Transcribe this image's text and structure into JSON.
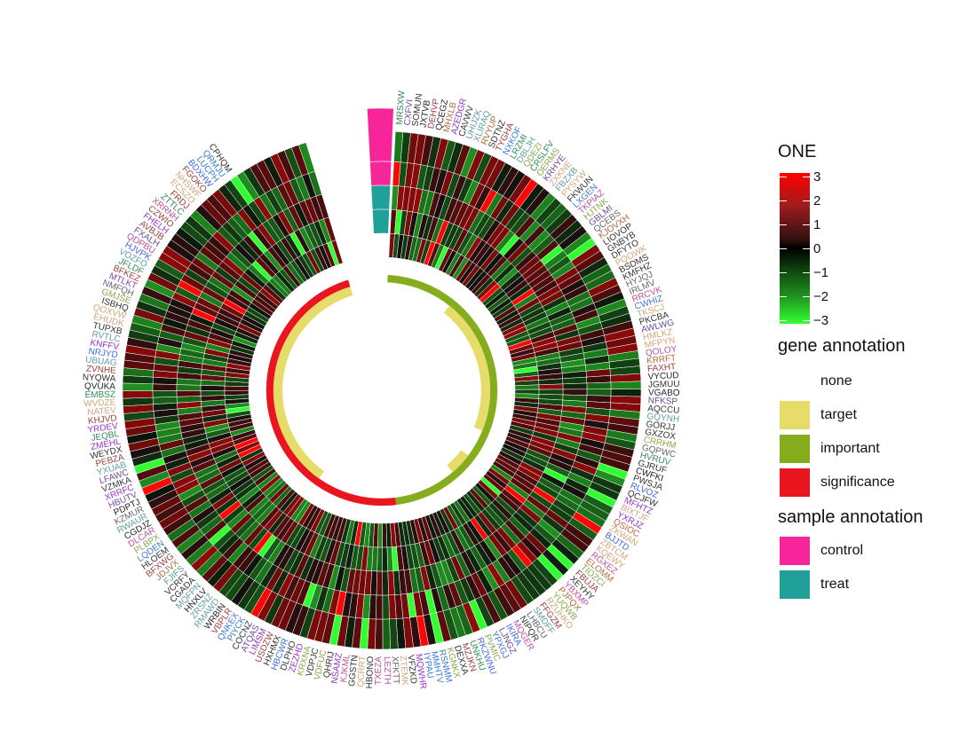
{
  "chart_data": {
    "type": "heatmap",
    "layout": "circular",
    "rows": [
      "control",
      "control",
      "treat",
      "treat"
    ],
    "colorbar": {
      "title": "ONE",
      "range": [
        -3,
        3
      ],
      "tick_labels": [
        "3",
        "2",
        "1",
        "0",
        "−1",
        "−2",
        "−3"
      ],
      "ticks": [
        3,
        2,
        1,
        0,
        -1,
        -2,
        -3
      ],
      "low_color": "#33ff33",
      "mid_color": "#000000",
      "high_color": "#ff0000"
    },
    "gene_annotation": {
      "title": "gene annotation",
      "levels": [
        {
          "label": "none",
          "color": "#ffffff"
        },
        {
          "label": "target",
          "color": "#e6dc6a"
        },
        {
          "label": "important",
          "color": "#85ac1c"
        },
        {
          "label": "significance",
          "color": "#e8141e"
        }
      ]
    },
    "sample_annotation": {
      "title": "sample annotation",
      "levels": [
        {
          "label": "control",
          "color": "#f7259a"
        },
        {
          "label": "treat",
          "color": "#21a09a"
        }
      ]
    },
    "genes_sampled_labels": [
      "MRSXW",
      "CXFVI",
      "SOMUN",
      "JXTVB",
      "DEHVP",
      "QCEGZ",
      "MHXLB",
      "AZEDGR",
      "CAVWV",
      "UHIJZK",
      "XLIRAQ",
      "RVYUP",
      "SDTNZ",
      "TYGHA",
      "NXKOF",
      "LRZMI",
      "DBLJH",
      "QDEZI",
      "CRSLFV",
      "OERMS",
      "KRHYE",
      "ZXKNE",
      "FBZXB",
      "PYSYW",
      "FKWUN",
      "LXGEN",
      "TKPIAZ",
      "HJTNK",
      "GBLMI",
      "QCEBS",
      "KJOVXH",
      "LIOVOP",
      "GNBYB",
      "DFYTO",
      "PQOWK",
      "BSDMS",
      "KMFHZ",
      "HYJQJ",
      "IRLMV",
      "RRCVK",
      "CWHIZ",
      "TKSCJ",
      "PKCBA",
      "AWLWG",
      "HMLKZ",
      "MFPYN",
      "QOLOY",
      "KRRFT",
      "FAXHT",
      "VYCUD",
      "JGMUU",
      "VGABO",
      "NFKSP",
      "AQCCU",
      "GQYNH",
      "GORJJ",
      "GXZOX",
      "CRRHM",
      "GQPWC",
      "HVRUV",
      "GJRUF",
      "CWFKI",
      "PWSJA",
      "RLVOZ",
      "QCJFW",
      "MFHTZ",
      "BIXTJF",
      "YXRJZ",
      "QSIOC",
      "ZKWAN",
      "BJJTD",
      "ZBTCM",
      "KQEWY",
      "RGXEZ",
      "ELOMM",
      "TIOZCI",
      "FBUJA",
      "XEYHY",
      "YBXMP",
      "PJPQX",
      "YUQWB",
      "RZUHKO",
      "FFGZM",
      "SMDFF",
      "LHBCU",
      "NIPQR",
      "MQGER",
      "IKIRA",
      "LJNGZ",
      "YPXGJ",
      "PVMIC",
      "RKZWNU",
      "UNKHU",
      "MZJKN",
      "DEXXA",
      "KGNKX",
      "RSNMM",
      "MMHTV",
      "IYPAU",
      "MQWHR",
      "VFZKD",
      "ZTEMK",
      "XFKTT",
      "LEZTH",
      "TXEZA",
      "HBONO",
      "QCRRT",
      "GGSTN",
      "KJKML",
      "NSAMZ",
      "QHRIJ",
      "VDFUC",
      "VDPJC",
      "KRXNA",
      "ZEZHD",
      "DLPHO",
      "HBCWR",
      "HXHMX",
      "USDZW",
      "LIMSM",
      "ATQAS",
      "COCNZ",
      "PIYCK",
      "QNKEX",
      "VBPLR",
      "WRBIN",
      "RMAWD",
      "ZRSNZ",
      "HNXLV",
      "MQFPN",
      "CGADA",
      "VCRFY",
      "FJIFS",
      "JDJVX",
      "BFXWG",
      "HLOEM",
      "LQDEN",
      "PLBPX",
      "DLCAR",
      "CGDJZ",
      "RWAUR",
      "KZMUR",
      "PDPTJ",
      "HBUTV",
      "XRRFC",
      "VZMKA",
      "LFAWC",
      "YXUAB",
      "PEBZA",
      "WEYDX",
      "ZMEHL",
      "JEQBL",
      "YRDEV",
      "KHJVD",
      "NATEV",
      "WVDZE",
      "EMBSZ",
      "QVUKA",
      "NYQWA",
      "ZVNHE",
      "UBUAG",
      "NRJYD",
      "KNFFV",
      "RVTLC",
      "TUPXB",
      "EHUDK",
      "QOXVW",
      "ISBHQ",
      "GMJSE",
      "NMFQH",
      "MTLKT",
      "BFKEZ",
      "JFLDF",
      "VOZFO",
      "HJVPK",
      "QDPBU",
      "FXALH",
      "AVBJB",
      "FHELH",
      "CZWIO",
      "XRRNH",
      "ZTTLC",
      "FRDJ",
      "ECSZO",
      "NHSWF",
      "FGOKO",
      "BDXHW",
      "LUCPH",
      "QRMJU",
      "CPHQM"
    ]
  }
}
